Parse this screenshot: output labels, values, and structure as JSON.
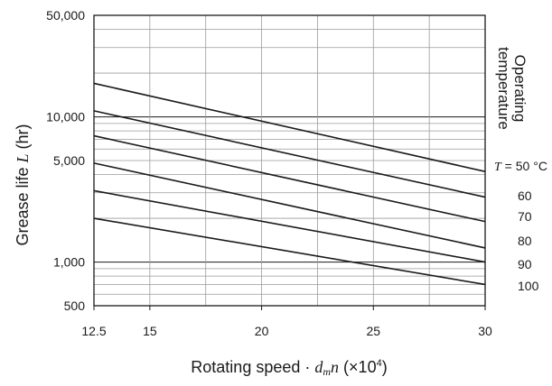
{
  "chart_data": {
    "type": "line",
    "title": "",
    "xlabel_parts": {
      "prefix": "Rotating speed · ",
      "var_d": "d",
      "sub_m": "m",
      "var_n": "n",
      "unit_open": " (×10",
      "unit_sup": "4",
      "unit_close": ")"
    },
    "ylabel_parts": {
      "prefix": "Grease life ",
      "var": "L",
      "unit": " (hr)"
    },
    "legend_title": [
      "Operating",
      "temperature"
    ],
    "x_range": [
      12.5,
      30
    ],
    "y_range": [
      500,
      50000
    ],
    "y_scale": "log",
    "grid": true,
    "x_ticks": [
      {
        "value": 12.5,
        "label": "12.5"
      },
      {
        "value": 15,
        "label": "15"
      },
      {
        "value": 20,
        "label": "20"
      },
      {
        "value": 25,
        "label": "25"
      },
      {
        "value": 30,
        "label": "30"
      }
    ],
    "y_ticks": [
      {
        "value": 500,
        "label": "500"
      },
      {
        "value": 1000,
        "label": "1,000"
      },
      {
        "value": 5000,
        "label": "5,000"
      },
      {
        "value": 10000,
        "label": "10,000"
      },
      {
        "value": 50000,
        "label": "50,000"
      }
    ],
    "series": [
      {
        "label": "T = 50 °C",
        "label_var": "T",
        "label_rest": " = 50 °C",
        "x": [
          12.5,
          30
        ],
        "y": [
          17000,
          4200
        ]
      },
      {
        "label": "60",
        "x": [
          12.5,
          30
        ],
        "y": [
          11000,
          2800
        ]
      },
      {
        "label": "70",
        "x": [
          12.5,
          30
        ],
        "y": [
          7400,
          1900
        ]
      },
      {
        "label": "80",
        "x": [
          12.5,
          30
        ],
        "y": [
          4800,
          1250
        ]
      },
      {
        "label": "90",
        "x": [
          12.5,
          30
        ],
        "y": [
          3100,
          1000
        ]
      },
      {
        "label": "100",
        "x": [
          12.5,
          30
        ],
        "y": [
          2000,
          700
        ]
      }
    ]
  }
}
